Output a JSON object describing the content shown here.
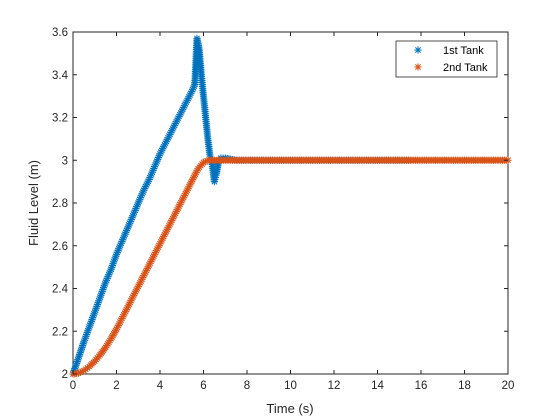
{
  "colors": {
    "background": "#ffffff",
    "axis": "#262626",
    "series_1": "#0072bd",
    "series_2": "#d95319"
  },
  "chart_data": {
    "type": "scatter",
    "xlabel": "Time (s)",
    "ylabel": "Fluid Level (m)",
    "xlim": [
      0,
      20
    ],
    "ylim": [
      2,
      3.6
    ],
    "x_ticks": [
      0,
      2,
      4,
      6,
      8,
      10,
      12,
      14,
      16,
      18,
      20
    ],
    "x_tick_labels": [
      "0",
      "2",
      "4",
      "6",
      "8",
      "10",
      "12",
      "14",
      "16",
      "18",
      "20"
    ],
    "y_ticks": [
      2,
      2.2,
      2.4,
      2.6,
      2.8,
      3,
      3.2,
      3.4,
      3.6
    ],
    "y_tick_labels": [
      "2",
      "2.2",
      "2.4",
      "2.6",
      "2.8",
      "3",
      "3.2",
      "3.4",
      "3.6"
    ],
    "grid": false,
    "legend_position": "top-right",
    "marker": "asterisk",
    "series": [
      {
        "name": "1st Tank",
        "color": "#0072bd",
        "x": [
          0,
          0.25,
          0.5,
          0.75,
          1.0,
          1.25,
          1.5,
          1.75,
          2.0,
          2.25,
          2.5,
          2.75,
          3.0,
          3.25,
          3.5,
          3.75,
          4.0,
          4.25,
          4.5,
          4.75,
          5.0,
          5.25,
          5.5,
          5.6,
          5.7,
          5.8,
          5.9,
          6.0,
          6.1,
          6.2,
          6.3,
          6.4,
          6.5,
          6.6,
          6.7,
          6.8,
          7.0,
          7.5,
          8.0,
          8.5,
          9.0,
          10.0,
          11.0,
          12.0,
          13.0,
          14.0,
          15.0,
          15.5
        ],
        "y": [
          2.0,
          2.075,
          2.15,
          2.22,
          2.29,
          2.36,
          2.43,
          2.49,
          2.56,
          2.62,
          2.68,
          2.74,
          2.8,
          2.86,
          2.91,
          2.97,
          3.03,
          3.08,
          3.13,
          3.18,
          3.23,
          3.28,
          3.33,
          3.355,
          3.57,
          3.52,
          3.4,
          3.3,
          3.2,
          3.1,
          3.02,
          2.98,
          2.9,
          2.94,
          3.0,
          3.01,
          3.01,
          3.0,
          3.0,
          3.0,
          3.0,
          3.0,
          3.0,
          3.0,
          3.0,
          3.0,
          3.0,
          3.0
        ]
      },
      {
        "name": "2nd Tank",
        "color": "#d95319",
        "x": [
          0,
          0.25,
          0.5,
          0.75,
          1.0,
          1.25,
          1.5,
          1.75,
          2.0,
          2.25,
          2.5,
          2.75,
          3.0,
          3.25,
          3.5,
          3.75,
          4.0,
          4.25,
          4.5,
          4.75,
          5.0,
          5.25,
          5.5,
          5.75,
          6.0,
          6.25,
          6.5,
          7.0,
          8.0,
          9.0,
          10.0,
          11.0,
          12.0,
          13.0,
          14.0,
          15.0,
          16.0,
          17.0,
          18.0,
          19.0,
          20.0
        ],
        "y": [
          2.0,
          2.004,
          2.016,
          2.035,
          2.06,
          2.09,
          2.125,
          2.165,
          2.21,
          2.26,
          2.31,
          2.36,
          2.41,
          2.46,
          2.51,
          2.56,
          2.61,
          2.66,
          2.71,
          2.76,
          2.81,
          2.86,
          2.91,
          2.96,
          2.99,
          3.0,
          3.0,
          3.0,
          3.0,
          3.0,
          3.0,
          3.0,
          3.0,
          3.0,
          3.0,
          3.0,
          3.0,
          3.0,
          3.0,
          3.0,
          3.0
        ]
      }
    ]
  }
}
